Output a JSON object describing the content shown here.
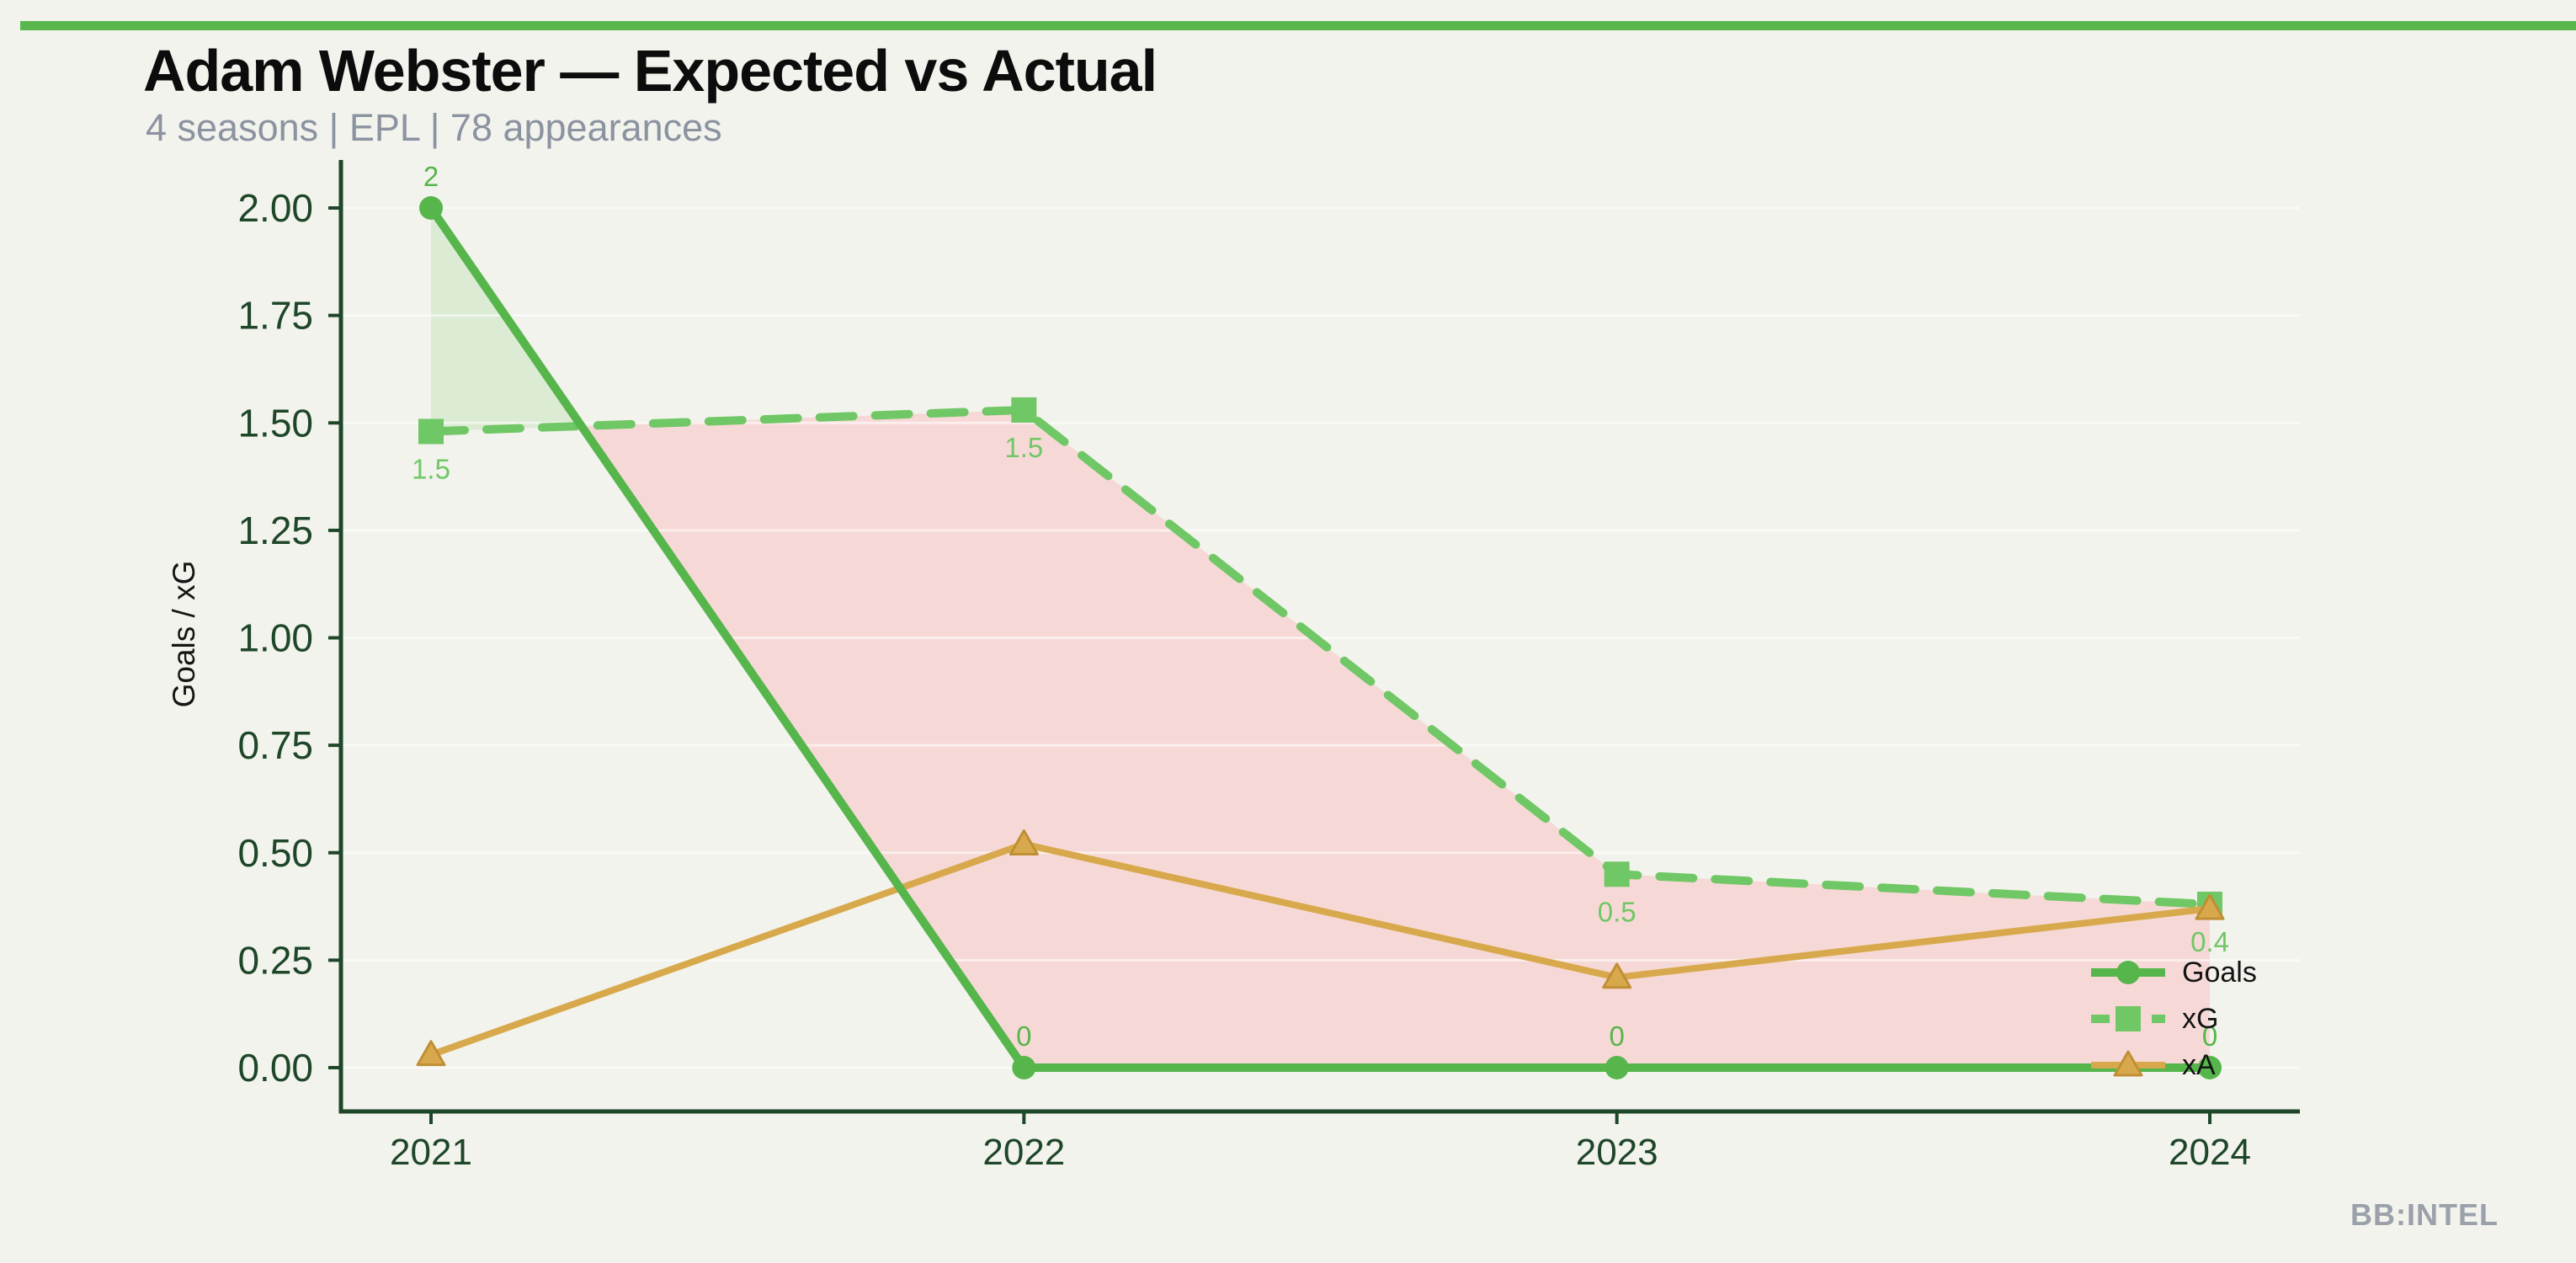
{
  "page": {
    "title": "Adam Webster — Expected vs Actual",
    "subtitle": "4 seasons | EPL | 78 appearances",
    "watermark": "BB:INTEL",
    "accent_bar_color": "#59b84d",
    "background_color": "#f2f3ec"
  },
  "chart_data": {
    "type": "line",
    "title": "Adam Webster — Expected vs Actual",
    "subtitle": "4 seasons | EPL | 78 appearances",
    "categories": [
      "2021",
      "2022",
      "2023",
      "2024"
    ],
    "xlabel": "",
    "ylabel": "Goals / xG",
    "ylim": [
      0,
      2.0
    ],
    "ytick_values": [
      0,
      0.25,
      0.5,
      0.75,
      1.0,
      1.25,
      1.5,
      1.75,
      2.0
    ],
    "ytick_labels": [
      "0.00",
      "0.25",
      "0.50",
      "0.75",
      "1.00",
      "1.25",
      "1.50",
      "1.75",
      "2.00"
    ],
    "grid": true,
    "axis_color": "#1e4629",
    "tick_label_color": "#1e4629",
    "legend_position": "lower right",
    "legend_labels": [
      "Goals",
      "xG",
      "xA"
    ],
    "series": [
      {
        "name": "Goals",
        "marker": "circle",
        "dash": "solid",
        "color": "#56b54b",
        "values": [
          2,
          0,
          0,
          0
        ],
        "point_labels": [
          "2",
          "0",
          "0",
          "0"
        ],
        "label_side": "above"
      },
      {
        "name": "xG",
        "marker": "square",
        "dash": "dashed",
        "color": "#70c765",
        "values": [
          1.48,
          1.53,
          0.45,
          0.38
        ],
        "point_labels": [
          "1.5",
          "1.5",
          "0.5",
          "0.4"
        ],
        "label_side": "below"
      },
      {
        "name": "xA",
        "marker": "triangle",
        "dash": "solid",
        "color": "#d8a94c",
        "marker_edge_color": "#c08f35",
        "values": [
          0.03,
          0.52,
          0.21,
          0.37
        ],
        "point_labels": null
      }
    ],
    "fill_between": {
      "upper": "Goals",
      "lower": "xG",
      "positive_color": "#dcebd3",
      "negative_color": "#f6d9d6"
    }
  }
}
